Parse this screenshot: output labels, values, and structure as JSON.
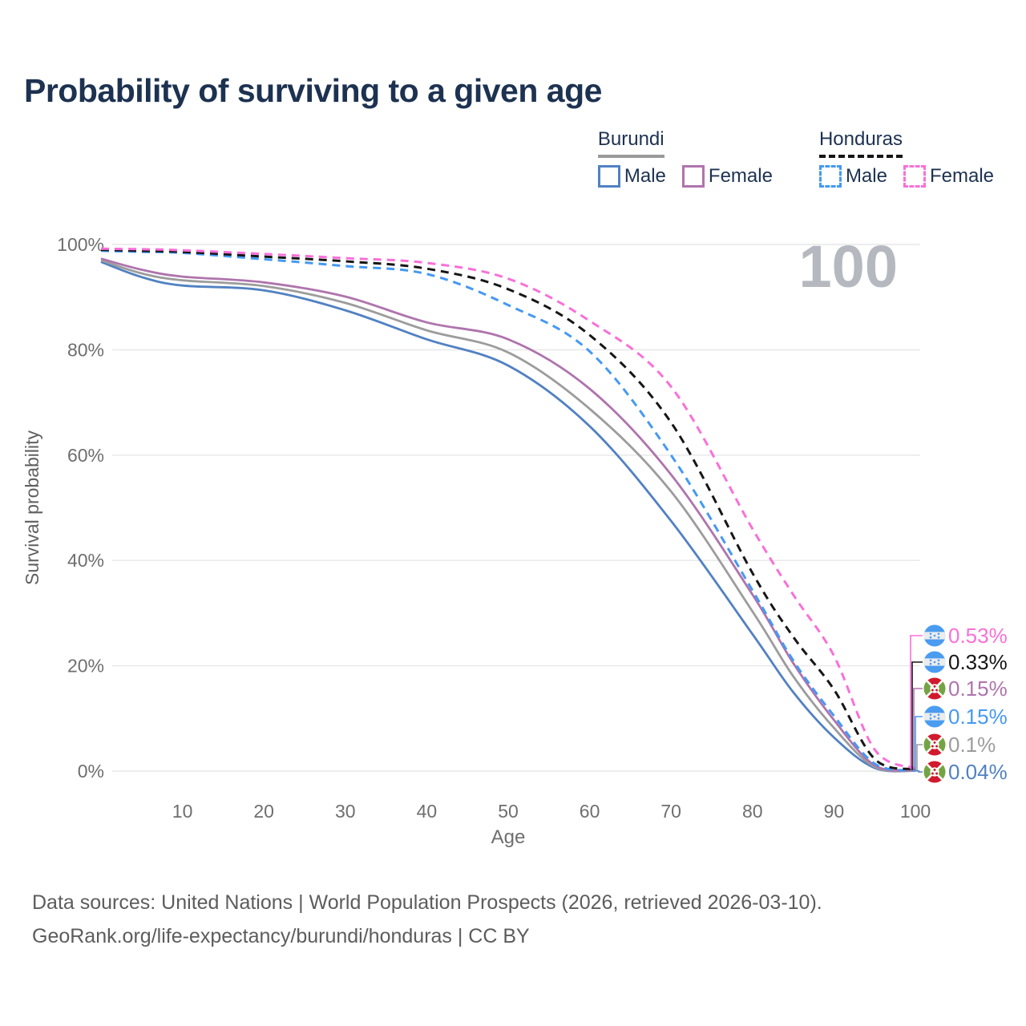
{
  "title": "Probability of surviving to a given age",
  "watermark_age": "100",
  "legend": {
    "groups": [
      {
        "name": "Burundi",
        "line_style": "solid",
        "underline_color": "#9a9a9a",
        "items": [
          {
            "label": "Male",
            "color": "#5181c2"
          },
          {
            "label": "Female",
            "color": "#af74ad"
          }
        ]
      },
      {
        "name": "Honduras",
        "line_style": "dashed",
        "underline_color": "#161616",
        "items": [
          {
            "label": "Male",
            "color": "#4599f2"
          },
          {
            "label": "Female",
            "color": "#f970d8"
          }
        ]
      }
    ]
  },
  "chart_data": {
    "type": "line",
    "title": "Probability of surviving to a given age",
    "xlabel": "Age",
    "ylabel": "Survival probability",
    "xlim": [
      0,
      100
    ],
    "ylim": [
      0,
      100
    ],
    "grid": "horizontal",
    "x_ticks": [
      10,
      20,
      30,
      40,
      50,
      60,
      70,
      80,
      90,
      100
    ],
    "y_ticks": [
      0,
      20,
      40,
      60,
      80,
      100
    ],
    "y_tick_labels": [
      "0%",
      "20%",
      "40%",
      "60%",
      "80%",
      "100%"
    ],
    "ages": [
      0,
      5,
      10,
      20,
      30,
      40,
      50,
      60,
      70,
      80,
      85,
      90,
      95,
      100
    ],
    "series": [
      {
        "name": "Burundi Male",
        "country": "Burundi",
        "sex": "Male",
        "color": "#5181c2",
        "dashed": false,
        "flag": "burundi",
        "end_label": "0.04%",
        "label_row": 5,
        "values": [
          96.7,
          93.8,
          92.2,
          91.3,
          87.5,
          82.0,
          77.0,
          65.5,
          47.5,
          26.0,
          15.0,
          6.4,
          0.6,
          0.04
        ]
      },
      {
        "name": "Burundi Both sexes",
        "country": "Burundi",
        "sex": "Both",
        "color": "#9c9c9c",
        "dashed": false,
        "flag": "burundi",
        "end_label": "0.1%",
        "label_row": 4,
        "values": [
          97.0,
          94.5,
          93.2,
          92.1,
          88.9,
          83.7,
          79.5,
          68.8,
          53.1,
          30.3,
          18.0,
          8.2,
          0.8,
          0.1
        ]
      },
      {
        "name": "Burundi Female",
        "country": "Burundi",
        "sex": "Female",
        "color": "#af74ad",
        "dashed": false,
        "flag": "burundi",
        "end_label": "0.15%",
        "label_row": 2,
        "values": [
          97.3,
          95.2,
          93.9,
          92.8,
          90.1,
          85.2,
          82.0,
          72.6,
          56.3,
          33.5,
          20.5,
          9.7,
          1.1,
          0.15
        ]
      },
      {
        "name": "Honduras Male",
        "country": "Honduras",
        "sex": "Male",
        "color": "#4599f2",
        "dashed": true,
        "flag": "honduras",
        "end_label": "0.15%",
        "label_row": 3,
        "values": [
          98.8,
          98.6,
          98.4,
          97.2,
          95.9,
          94.4,
          88.5,
          79.7,
          60.0,
          34.3,
          21.0,
          10.5,
          1.4,
          0.15
        ]
      },
      {
        "name": "Honduras Both sexes",
        "country": "Honduras",
        "sex": "Both",
        "color": "#161616",
        "dashed": true,
        "flag": "honduras",
        "end_label": "0.33%",
        "label_row": 1,
        "values": [
          99.0,
          98.8,
          98.6,
          97.7,
          96.8,
          95.4,
          91.5,
          82.8,
          66.2,
          37.6,
          25.5,
          15.5,
          2.3,
          0.33
        ]
      },
      {
        "name": "Honduras Female",
        "country": "Honduras",
        "sex": "Female",
        "color": "#f970d8",
        "dashed": true,
        "flag": "honduras",
        "end_label": "0.53%",
        "label_row": 0,
        "values": [
          99.2,
          99.1,
          98.9,
          98.2,
          97.4,
          96.5,
          93.5,
          85.5,
          73.0,
          46.0,
          33.5,
          21.9,
          4.1,
          0.53
        ]
      }
    ],
    "legend_position": "top-right"
  },
  "footer": {
    "line1": "Data sources: United Nations | World Population Prospects (2026, retrieved 2026-03-10).",
    "line2": "GeoRank.org/life-expectancy/burundi/honduras | CC BY"
  }
}
